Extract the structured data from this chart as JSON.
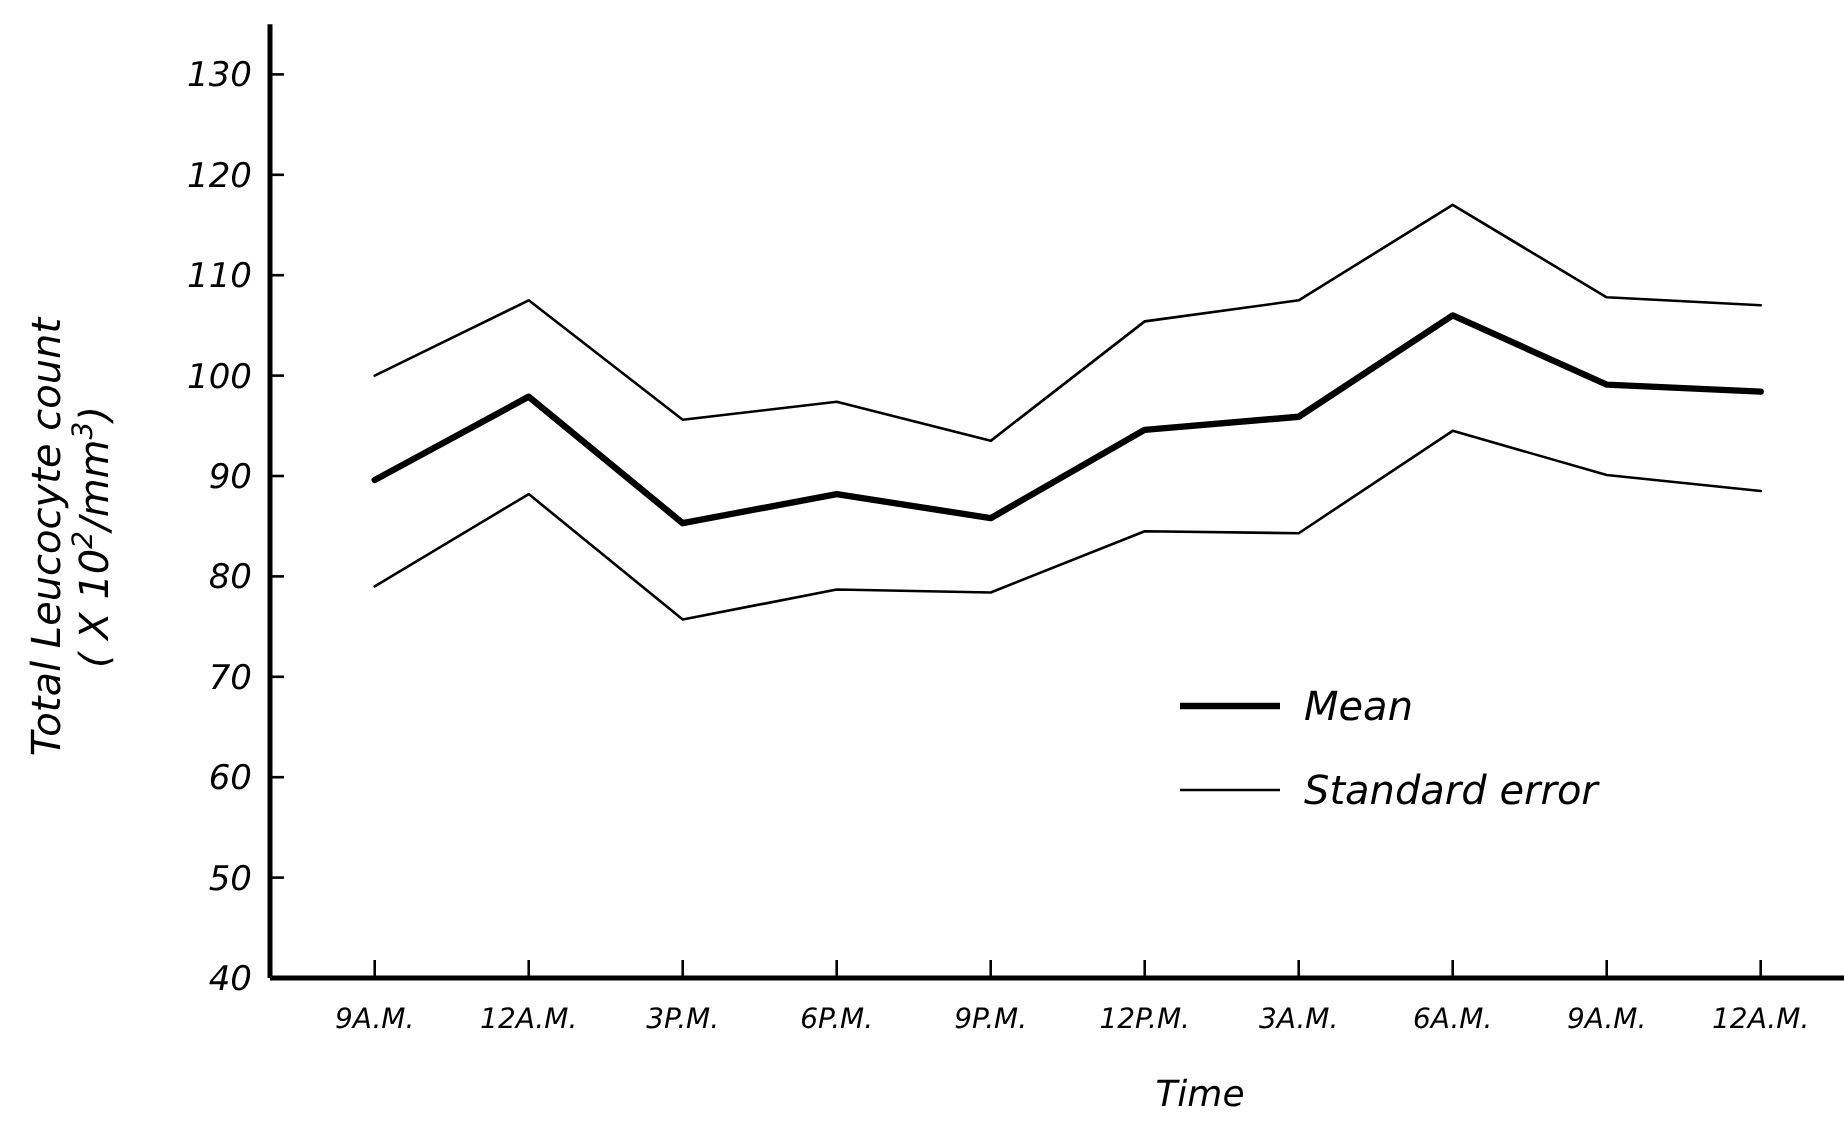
{
  "chart_data": {
    "type": "line",
    "xlabel": "Time",
    "ylabel": "Total  Leucocyte count\n( X 10$^{2}$/mm$^{3}$)",
    "categories": [
      "9A.M.",
      "12A.M.",
      "3P.M.",
      "6P.M.",
      "9P.M.",
      "12P.M.",
      "3A.M.",
      "6A.M.",
      "9A.M.",
      "12A.M."
    ],
    "series": [
      {
        "name": "Mean",
        "color": "#000000",
        "values": [
          89.6,
          97.9,
          85.3,
          88.2,
          85.8,
          94.6,
          95.9,
          106.0,
          99.1,
          98.4
        ]
      },
      {
        "name": "Standard error",
        "color": "#000000",
        "values": [
          100.0,
          107.5,
          95.6,
          97.4,
          93.5,
          105.4,
          107.5,
          117.0,
          107.8,
          107.0
        ]
      },
      {
        "color": "#000000",
        "values": [
          79.0,
          88.2,
          75.7,
          78.7,
          78.4,
          84.5,
          84.3,
          94.5,
          90.1,
          88.5
        ]
      }
    ],
    "ylim": [
      40,
      135
    ],
    "yticks": [
      40,
      50,
      60,
      70,
      80,
      90,
      100,
      110,
      120,
      130
    ],
    "legend": "right",
    "grid": false,
    "marker": "none",
    "line_style": "solid"
  }
}
